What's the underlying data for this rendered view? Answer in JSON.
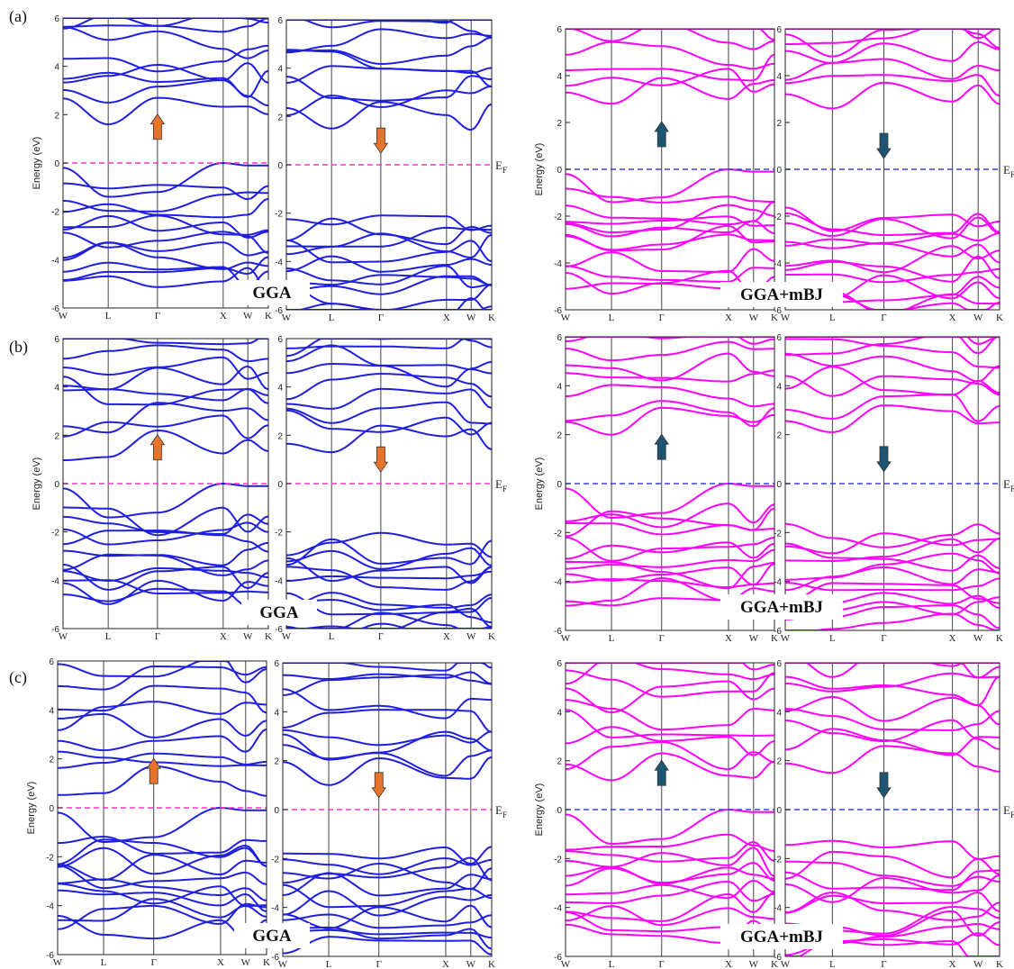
{
  "figure": {
    "ylabel": "Energy (eV)",
    "ef_label": "E",
    "ef_sub": "F",
    "ytick_labels": [
      "-6",
      "-4",
      "-2",
      "0",
      "2",
      "4",
      "6"
    ],
    "kpoints": [
      "W",
      "L",
      "Γ",
      "X",
      "W",
      "K"
    ],
    "colors": {
      "gga_band": "#1f1fe0",
      "mbj_band": "#ff00ff",
      "gga_ef": "#ff33cc",
      "mbj_ef": "#3344dd",
      "gga_arrow": "#e8742c",
      "mbj_arrow": "#1e5570"
    }
  },
  "rows": [
    {
      "label": "(a)",
      "gga_label": "GGA",
      "mbj_label": "GGA+mBJ"
    },
    {
      "label": "(b)",
      "gga_label": "GGA",
      "mbj_label": "GGA+mBJ"
    },
    {
      "label": "(c)",
      "gga_label": "GGA",
      "mbj_label": "GGA+mBJ"
    }
  ],
  "chart_data": {
    "type": "line",
    "title": "",
    "xlabel": "",
    "ylabel": "Energy (eV)",
    "ylim": [
      -6,
      6
    ],
    "x_ticks": [
      "W",
      "L",
      "Γ",
      "X",
      "W",
      "K"
    ],
    "fermi_level": 0,
    "panels": [
      {
        "row": "(a)",
        "method": "GGA",
        "spin": "up",
        "valence_max": 0.0,
        "conduction_min": 1.6
      },
      {
        "row": "(a)",
        "method": "GGA",
        "spin": "down",
        "valence_max": -1.3,
        "conduction_min": 1.5
      },
      {
        "row": "(a)",
        "method": "GGA+mBJ",
        "spin": "up",
        "valence_max": 0.0,
        "conduction_min": 2.8
      },
      {
        "row": "(a)",
        "method": "GGA+mBJ",
        "spin": "down",
        "valence_max": -1.0,
        "conduction_min": 2.6
      },
      {
        "row": "(b)",
        "method": "GGA",
        "spin": "up",
        "valence_max": 0.0,
        "conduction_min": 1.1
      },
      {
        "row": "(b)",
        "method": "GGA",
        "spin": "down",
        "valence_max": -1.4,
        "conduction_min": 1.3
      },
      {
        "row": "(b)",
        "method": "GGA+mBJ",
        "spin": "up",
        "valence_max": 0.0,
        "conduction_min": 2.0
      },
      {
        "row": "(b)",
        "method": "GGA+mBJ",
        "spin": "down",
        "valence_max": -1.0,
        "conduction_min": 2.1
      },
      {
        "row": "(c)",
        "method": "GGA",
        "spin": "up",
        "valence_max": 0.0,
        "conduction_min": 0.6
      },
      {
        "row": "(c)",
        "method": "GGA",
        "spin": "down",
        "valence_max": -0.8,
        "conduction_min": 1.0
      },
      {
        "row": "(c)",
        "method": "GGA+mBJ",
        "spin": "up",
        "valence_max": 0.0,
        "conduction_min": 1.2
      },
      {
        "row": "(c)",
        "method": "GGA+mBJ",
        "spin": "down",
        "valence_max": -0.9,
        "conduction_min": 1.5
      }
    ]
  }
}
